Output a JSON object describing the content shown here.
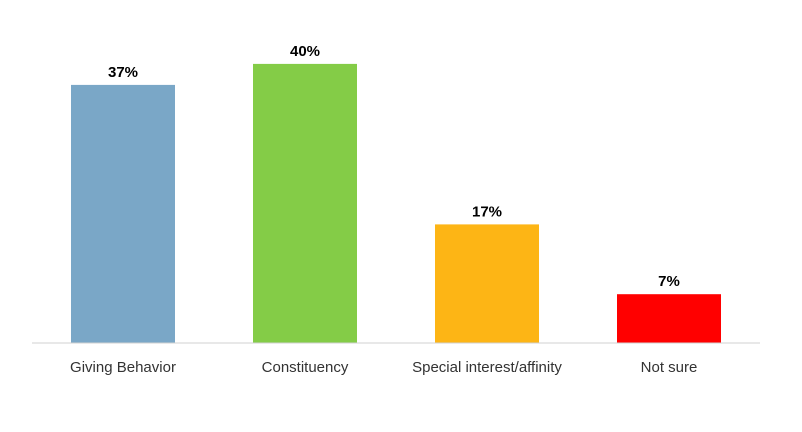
{
  "chart_data": {
    "type": "bar",
    "categories": [
      "Giving Behavior",
      "Constituency",
      "Special interest/affinity",
      "Not sure"
    ],
    "values": [
      37,
      40,
      17,
      7
    ],
    "value_labels": [
      "37%",
      "40%",
      "17%",
      "7%"
    ],
    "colors": [
      "#7aa7c7",
      "#84cc47",
      "#fdb515",
      "#ff0000"
    ],
    "title": "",
    "xlabel": "",
    "ylabel": "",
    "ylim": [
      0,
      43
    ],
    "grid": false,
    "legend": "none"
  }
}
